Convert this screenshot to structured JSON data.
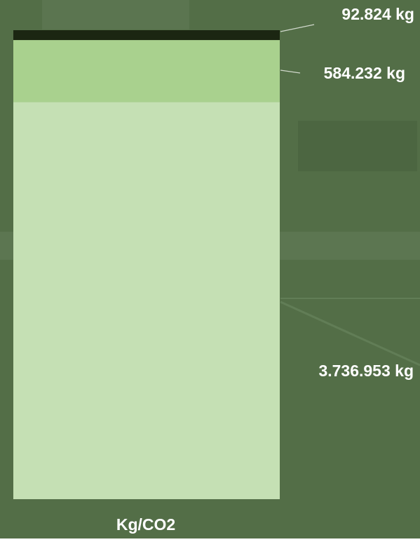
{
  "chart_data": {
    "type": "bar",
    "stacked": true,
    "categories": [
      "Kg/CO2"
    ],
    "series": [
      {
        "color": "#c5e0b4",
        "values": [
          3736953
        ],
        "value_labels": [
          "3.736.953 kg"
        ]
      },
      {
        "color": "#a9d18e",
        "values": [
          584232
        ],
        "value_labels": [
          "584.232 kg"
        ]
      },
      {
        "color": "#1b2612",
        "values": [
          92824
        ],
        "value_labels": [
          "92.824 kg"
        ]
      }
    ]
  }
}
